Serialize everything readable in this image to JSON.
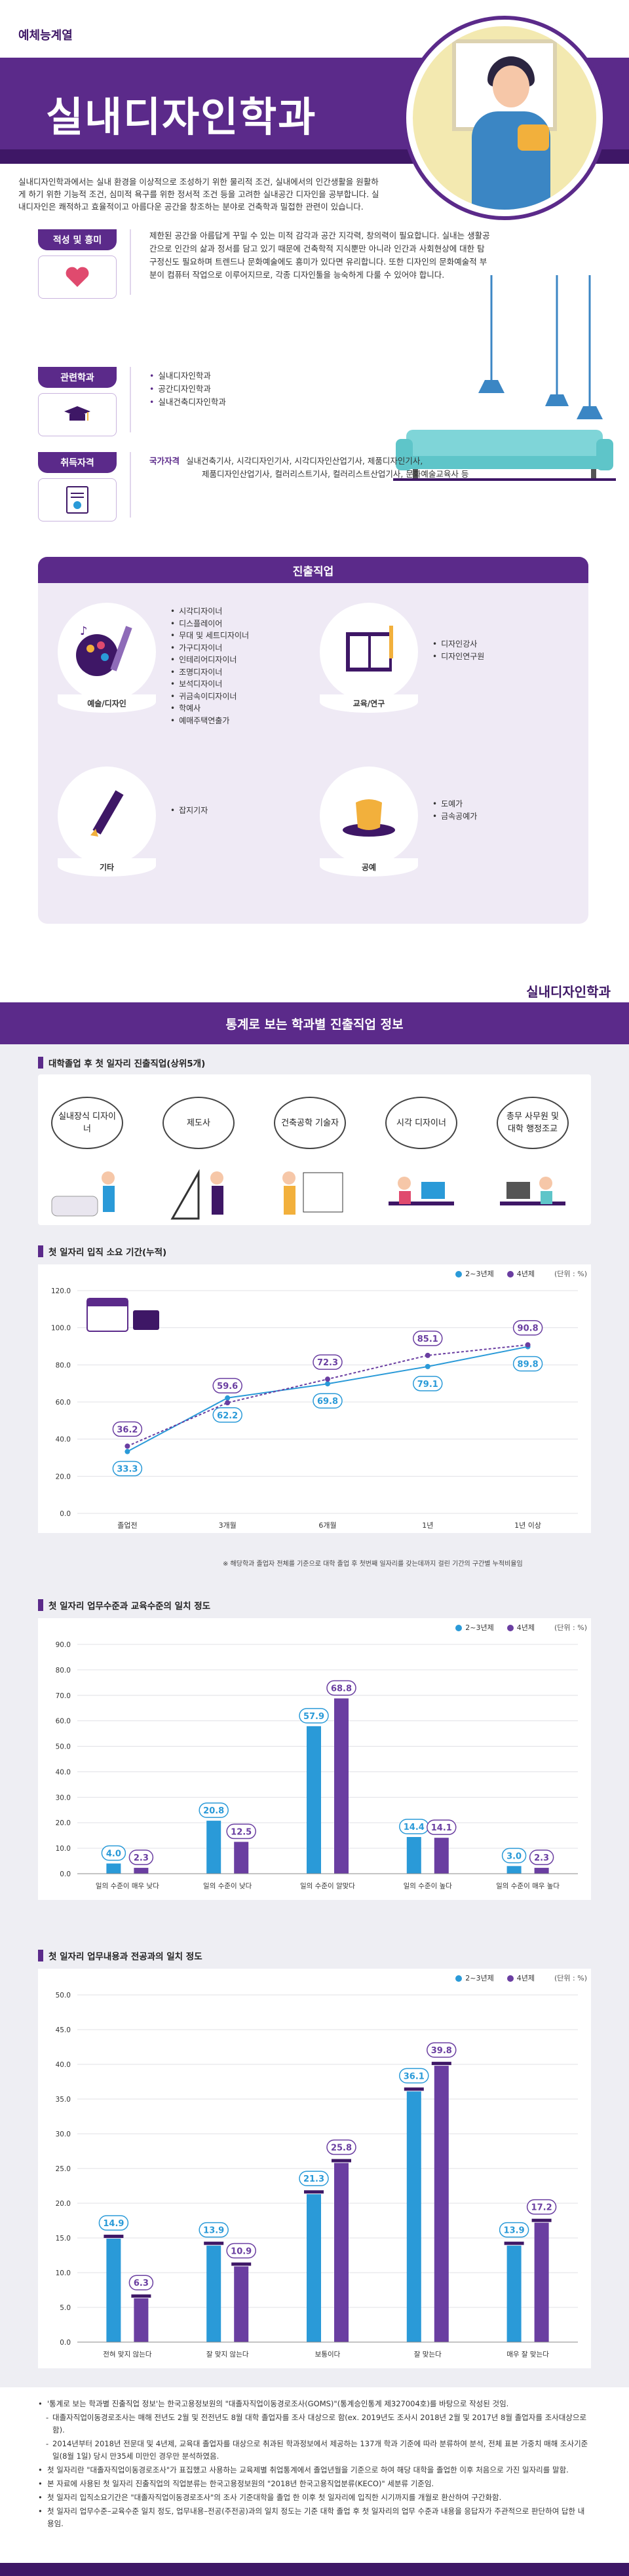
{
  "header": {
    "category": "예체능계열",
    "title": "실내디자인학과",
    "intro": "실내디자인학과에서는 실내 환경을 이상적으로 조성하기 위한 물리적 조건, 실내에서의 인간생활을 원활하게 하기 위한 기능적 조건, 심미적 욕구를 위한 정서적 조건 등을 고려한 실내공간 디자인을 공부합니다. 실내디자인은 쾌적하고 효율적이고 아름다운 공간을 창조하는 분야로 건축학과 밀접한 관련이 있습니다."
  },
  "aptitude": {
    "label": "적성 및 흥미",
    "text": "제한된 공간을 아름답게 꾸밀 수 있는 미적 감각과 공간 지각력, 창의력이 필요합니다. 실내는 생활공간으로 인간의 삶과 정서를 담고 있기 때문에 건축학적 지식뿐만 아니라 인간과 사회현상에 대한 탐구정신도 필요하며 트렌드나 문화예술에도 흥미가 있다면 유리합니다. 또한 디자인의 문화예술적 부분이 컴퓨터 작업으로 이루어지므로, 각종 디자인툴을 능숙하게 다룰 수 있어야 합니다."
  },
  "related": {
    "label": "관련학과",
    "items": [
      "실내디자인학과",
      "공간디자인학과",
      "실내건축디자인학과"
    ]
  },
  "license": {
    "label": "취득자격",
    "kind": "국가자격",
    "line1": "실내건축기사, 시각디자인기사, 시각디자인산업기사, 제품디자인기사,",
    "line2": "제품디자인산업기사, 컬러리스트기사, 컬러리스트산업기사, 문화예술교육사 등"
  },
  "career": {
    "title": "진출직업",
    "groups": [
      {
        "label": "예술/디자인",
        "items": [
          "시각디자이너",
          "디스플레이어",
          "무대 및 세트디자이너",
          "가구디자이너",
          "인테리어디자이너",
          "조명디자이너",
          "보석디자이너",
          "귀금속이디자이너",
          "학예사",
          "예매주택연출가"
        ]
      },
      {
        "label": "교육/연구",
        "items": [
          "디자인강사",
          "디자인연구원"
        ]
      },
      {
        "label": "기타",
        "items": [
          "잡지기자"
        ]
      },
      {
        "label": "공예",
        "items": [
          "도예가",
          "금속공예가"
        ]
      }
    ]
  },
  "stats": {
    "dept_tag": "실내디자인학과",
    "title": "통계로 보는 학과별 진출직업 정보",
    "top_jobs_title": "대학졸업 후 첫 일자리 진출직업(상위5개)",
    "top_jobs": [
      "실내장식 디자이너",
      "제도사",
      "건축공학 기술자",
      "시각 디자이너",
      "총무 사무원 및 대학 행정조교"
    ],
    "legend_a": "2~3년제",
    "legend_b": "4년제",
    "unit": "(단위 : %)"
  },
  "colors": {
    "purple": "#5b2a8a",
    "dark_purple": "#3e1766",
    "blue": "#2a9ad8",
    "violet": "#6a3ea1"
  },
  "chart_data": [
    {
      "type": "line",
      "title": "첫 일자리 입직 소요 기간(누적)",
      "categories": [
        "졸업전",
        "3개월",
        "6개월",
        "1년",
        "1년 이상"
      ],
      "ylim": [
        0,
        120
      ],
      "yticks": [
        "0.0",
        "20.0",
        "40.0",
        "60.0",
        "80.0",
        "100.0",
        "120.0"
      ],
      "series": [
        {
          "name": "2~3년제",
          "values": [
            33.3,
            62.2,
            69.8,
            79.1,
            89.8
          ]
        },
        {
          "name": "4년제",
          "values": [
            36.2,
            59.6,
            72.3,
            85.1,
            90.8
          ]
        }
      ],
      "note": "※ 해당학과 졸업자 전체를 기준으로 대학 졸업 후 첫번째 일자리를 갖는데까지 걸린 기간의 구간별 누적비율임"
    },
    {
      "type": "bar",
      "title": "첫 일자리 업무수준과 교육수준의 일치 정도",
      "categories": [
        "일의 수준이 매우 낮다",
        "일의 수준이 낮다",
        "일의 수준이 알맞다",
        "일의 수준이 높다",
        "일의 수준이 매우 높다"
      ],
      "ylim": [
        0,
        90
      ],
      "yticks": [
        "0.0",
        "10.0",
        "20.0",
        "30.0",
        "40.0",
        "50.0",
        "60.0",
        "70.0",
        "80.0",
        "90.0"
      ],
      "series": [
        {
          "name": "2~3년제",
          "values": [
            4.0,
            20.8,
            57.9,
            14.4,
            3.0
          ]
        },
        {
          "name": "4년제",
          "values": [
            2.3,
            12.5,
            68.8,
            14.1,
            2.3
          ]
        }
      ]
    },
    {
      "type": "bar",
      "title": "첫 일자리 업무내용과 전공과의 일치 정도",
      "categories": [
        "전혀 맞지 않는다",
        "잘 맞지 않는다",
        "보통이다",
        "잘 맞는다",
        "매우 잘 맞는다"
      ],
      "ylim": [
        0,
        50
      ],
      "yticks": [
        "0.0",
        "5.0",
        "10.0",
        "15.0",
        "20.0",
        "25.0",
        "30.0",
        "35.0",
        "40.0",
        "45.0",
        "50.0"
      ],
      "series": [
        {
          "name": "2~3년제",
          "values": [
            14.9,
            13.9,
            21.3,
            36.1,
            13.9
          ]
        },
        {
          "name": "4년제",
          "values": [
            6.3,
            10.9,
            25.8,
            39.8,
            17.2
          ]
        }
      ]
    }
  ],
  "notes": [
    {
      "level": "main",
      "text": "'통계로 보는 학과별 진출직업 정보'는 한국고용정보원의 \"대졸자직업이동경로조사(GOMS)\"(통계승인통계 제327004호)를 바탕으로 작성된 것임."
    },
    {
      "level": "sub",
      "text": "대졸자직업이동경로조사는 매해 전년도 2월 및 전전년도 8월 대학 졸업자를 조사 대상으로 함(ex. 2019년도 조사시 2018년 2월 및 2017년 8월 졸업자를 조사대상으로 함)."
    },
    {
      "level": "sub",
      "text": "2014년부터 2018년 전문대 및 4년제, 교육대 졸업자를 대상으로 취과된 학과정보에서 제공하는 137개 학과 기준에 따라 분류하여 분석, 전체 표본 가중치 매해 조사기준일(8월 1일) 당시 만35세 미만인 경우만 분석하였음."
    },
    {
      "level": "main",
      "text": "첫 일자리란 \"대졸자직업이동경로조사\"가 표집했고 사용하는 교육제별 취업통계에서 졸업년월을 기준으로 하여 해당 대학을 졸업한 이후 처음으로 가진 일자리를 말함."
    },
    {
      "level": "main",
      "text": "본 자료에 사용된 첫 일자리 진출직업의 직업분류는 한국고용정보원의 \"2018년 한국고용직업분류(KECO)\" 세분류 기준임."
    },
    {
      "level": "main",
      "text": "첫 일자리 입직소요기간은 \"대졸자직업이동경로조사\"의 조사 기준대학을 졸업 한 이후 첫 일자리에 입직한 시기까지를 개월로 환산하여 구간화함."
    },
    {
      "level": "main",
      "text": "첫 일자리 업무수준–교육수준 일치 정도, 업무내용–전공(주전공)과의 일치 정도는 기준 대학 졸업 후 첫 일자리의 업무 수준과 내용을 응답자가 주관적으로 판단하여 답한 내용임."
    }
  ]
}
